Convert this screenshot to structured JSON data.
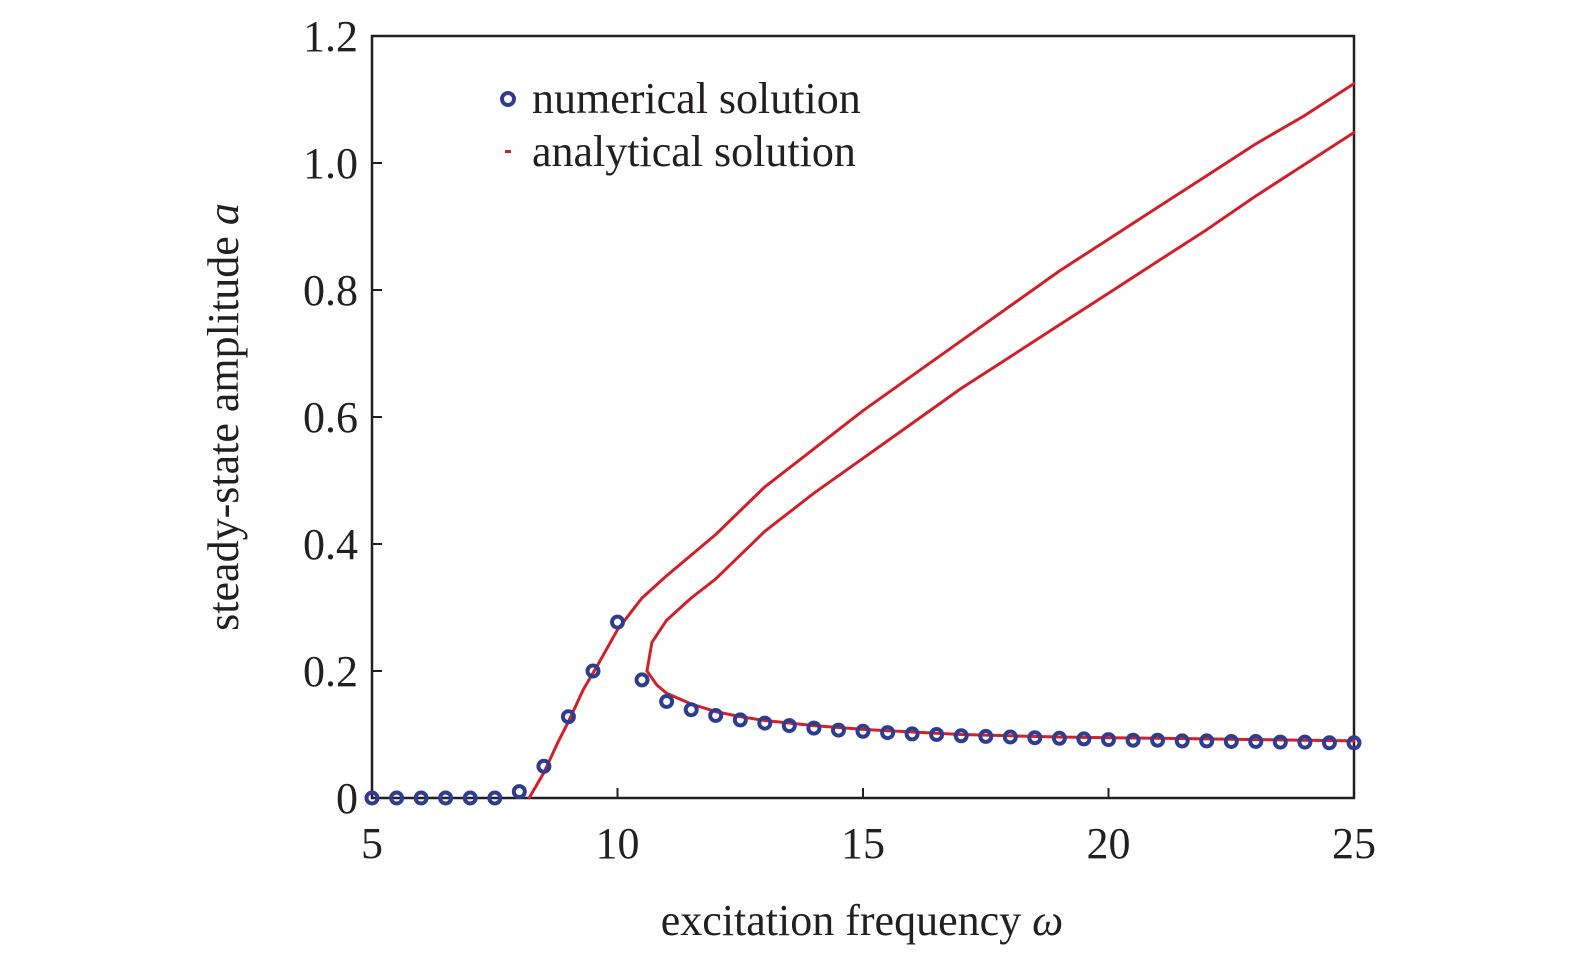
{
  "chart_data": {
    "type": "scatter",
    "title": "",
    "xlabel": "excitation frequency",
    "xlabel_symbol": "ω",
    "ylabel": "steady-state amplitude",
    "ylabel_symbol": "a",
    "xlim": [
      5,
      25
    ],
    "ylim": [
      0,
      1.2
    ],
    "xticks": [
      5,
      10,
      15,
      20,
      25
    ],
    "xtick_labels": [
      "5",
      "10",
      "15",
      "20",
      "25"
    ],
    "yticks": [
      0,
      0.2,
      0.4,
      0.6,
      0.8,
      1.0,
      1.2
    ],
    "ytick_labels": [
      "0",
      "0.2",
      "0.4",
      "0.6",
      "0.8",
      "1.0",
      "1.2"
    ],
    "grid": false,
    "legend_position": "top-left",
    "colors": {
      "numerical": "#2e3d8f",
      "analytical": "#d0202a",
      "axis": "#231f20"
    },
    "series": [
      {
        "name": "numerical solution",
        "marker": "open-circle",
        "x": [
          5,
          5.5,
          6,
          6.5,
          7,
          7.5,
          8,
          8.5,
          9,
          9.5,
          10,
          10.5,
          11,
          11.5,
          12,
          12.5,
          13,
          13.5,
          14,
          14.5,
          15,
          15.5,
          16,
          16.5,
          17,
          17.5,
          18,
          18.5,
          19,
          19.5,
          20,
          20.5,
          21,
          21.5,
          22,
          22.5,
          23,
          23.5,
          24,
          24.5,
          25
        ],
        "y": [
          0,
          0,
          0,
          0,
          0,
          0,
          0.01,
          0.05,
          0.128,
          0.2,
          0.277,
          0.186,
          0.152,
          0.139,
          0.13,
          0.123,
          0.118,
          0.114,
          0.11,
          0.107,
          0.105,
          0.103,
          0.101,
          0.1,
          0.098,
          0.097,
          0.096,
          0.095,
          0.094,
          0.093,
          0.092,
          0.091,
          0.091,
          0.09,
          0.09,
          0.089,
          0.089,
          0.088,
          0.088,
          0.087,
          0.087
        ]
      },
      {
        "name": "analytical solution",
        "marker": "line",
        "branches": [
          {
            "part": "rising-upper",
            "x": [
              8.2,
              8.5,
              8.8,
              9.0,
              9.3,
              9.6,
              10.0,
              10.5,
              11,
              12,
              13,
              14,
              15,
              16,
              17,
              18,
              19,
              20,
              21,
              22,
              23,
              24,
              25
            ],
            "y": [
              0,
              0.04,
              0.09,
              0.12,
              0.17,
              0.21,
              0.265,
              0.315,
              0.35,
              0.415,
              0.49,
              0.55,
              0.61,
              0.665,
              0.72,
              0.775,
              0.83,
              0.88,
              0.93,
              0.98,
              1.03,
              1.075,
              1.125
            ]
          },
          {
            "part": "middle",
            "x": [
              10.6,
              10.7,
              11,
              11.5,
              12,
              13,
              14,
              15,
              16,
              17,
              18,
              19,
              20,
              21,
              22,
              23,
              24,
              25
            ],
            "y": [
              0.2,
              0.245,
              0.28,
              0.315,
              0.345,
              0.42,
              0.48,
              0.535,
              0.59,
              0.645,
              0.695,
              0.745,
              0.795,
              0.845,
              0.895,
              0.948,
              0.998,
              1.048
            ]
          },
          {
            "part": "lower",
            "x": [
              10.6,
              10.8,
              11,
              11.5,
              12,
              12.5,
              13,
              14,
              15,
              16,
              17,
              18,
              19,
              20,
              21,
              22,
              23,
              24,
              25
            ],
            "y": [
              0.2,
              0.178,
              0.165,
              0.148,
              0.136,
              0.128,
              0.122,
              0.114,
              0.108,
              0.104,
              0.1,
              0.098,
              0.096,
              0.095,
              0.094,
              0.093,
              0.092,
              0.091,
              0.09
            ]
          }
        ]
      }
    ]
  }
}
